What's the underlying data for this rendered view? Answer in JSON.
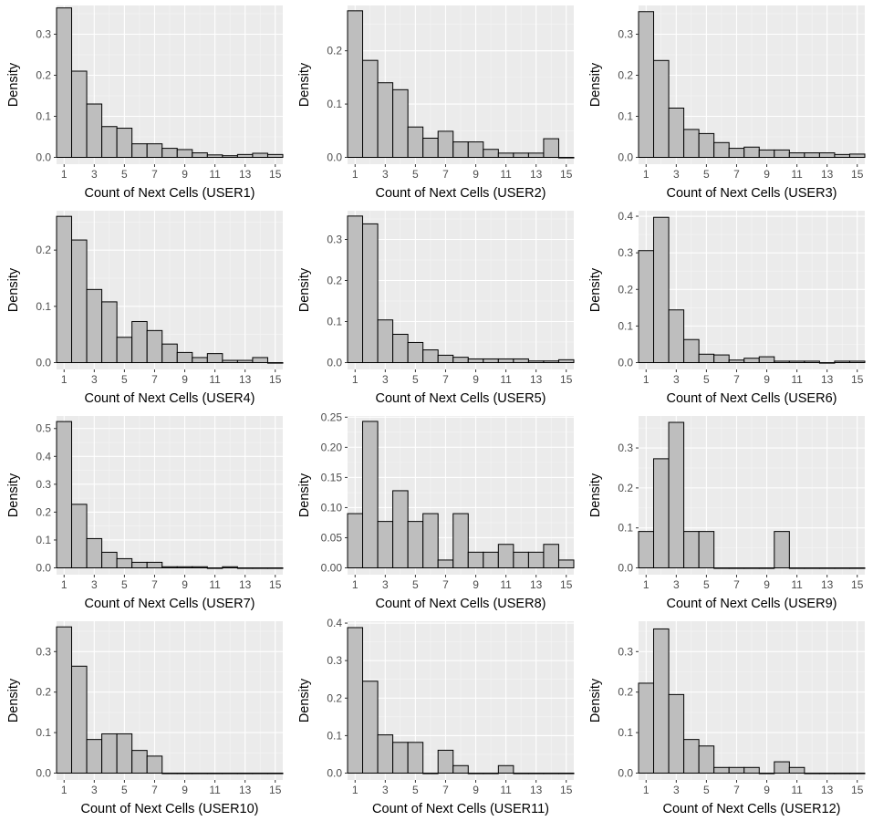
{
  "colors": {
    "panel_background": "#EBEBEB",
    "grid_major": "#FFFFFF",
    "grid_minor": "#F5F5F5",
    "bar_fill": "#BEBEBE",
    "bar_stroke": "#000000",
    "axis_text": "#4D4D4D",
    "title_text": "#000000"
  },
  "chart_data": [
    {
      "type": "bar",
      "xlabel": "Count of Next Cells (USER1)",
      "ylabel": "Density",
      "x": [
        1,
        2,
        3,
        4,
        5,
        6,
        7,
        8,
        9,
        10,
        11,
        12,
        13,
        14,
        15
      ],
      "values": [
        0.364,
        0.21,
        0.13,
        0.075,
        0.071,
        0.033,
        0.033,
        0.022,
        0.019,
        0.011,
        0.006,
        0.004,
        0.007,
        0.01,
        0.007
      ],
      "xlim": [
        0.5,
        15.5
      ],
      "ylim": [
        0,
        0.37
      ],
      "xticks": [
        1,
        3,
        5,
        7,
        9,
        11,
        13,
        15
      ],
      "yticks": [
        0,
        0.1,
        0.2,
        0.3
      ],
      "ytick_labels": [
        "0.0",
        "0.1",
        "0.2",
        "0.3"
      ]
    },
    {
      "type": "bar",
      "xlabel": "Count of Next Cells (USER2)",
      "ylabel": "Density",
      "x": [
        1,
        2,
        3,
        4,
        5,
        6,
        7,
        8,
        9,
        10,
        11,
        12,
        13,
        14,
        15
      ],
      "values": [
        0.275,
        0.182,
        0.14,
        0.127,
        0.057,
        0.036,
        0.049,
        0.029,
        0.029,
        0.015,
        0.008,
        0.008,
        0.008,
        0.035,
        0.0
      ],
      "xlim": [
        0.5,
        15.5
      ],
      "ylim": [
        0,
        0.285
      ],
      "xticks": [
        1,
        3,
        5,
        7,
        9,
        11,
        13,
        15
      ],
      "yticks": [
        0,
        0.1,
        0.2
      ],
      "ytick_labels": [
        "0.0",
        "0.1",
        "0.2"
      ]
    },
    {
      "type": "bar",
      "xlabel": "Count of Next Cells (USER3)",
      "ylabel": "Density",
      "x": [
        1,
        2,
        3,
        4,
        5,
        6,
        7,
        8,
        9,
        10,
        11,
        12,
        13,
        14,
        15
      ],
      "values": [
        0.355,
        0.236,
        0.12,
        0.068,
        0.058,
        0.036,
        0.022,
        0.025,
        0.018,
        0.018,
        0.011,
        0.011,
        0.011,
        0.007,
        0.008
      ],
      "xlim": [
        0.5,
        15.5
      ],
      "ylim": [
        0,
        0.37
      ],
      "xticks": [
        1,
        3,
        5,
        7,
        9,
        11,
        13,
        15
      ],
      "yticks": [
        0,
        0.1,
        0.2,
        0.3
      ],
      "ytick_labels": [
        "0.0",
        "0.1",
        "0.2",
        "0.3"
      ]
    },
    {
      "type": "bar",
      "xlabel": "Count of Next Cells (USER4)",
      "ylabel": "Density",
      "x": [
        1,
        2,
        3,
        4,
        5,
        6,
        7,
        8,
        9,
        10,
        11,
        12,
        13,
        14,
        15
      ],
      "values": [
        0.26,
        0.218,
        0.13,
        0.108,
        0.045,
        0.073,
        0.057,
        0.033,
        0.018,
        0.009,
        0.016,
        0.004,
        0.004,
        0.009,
        0.0
      ],
      "xlim": [
        0.5,
        15.5
      ],
      "ylim": [
        0,
        0.27
      ],
      "xticks": [
        1,
        3,
        5,
        7,
        9,
        11,
        13,
        15
      ],
      "yticks": [
        0,
        0.1,
        0.2
      ],
      "ytick_labels": [
        "0.0",
        "0.1",
        "0.2"
      ]
    },
    {
      "type": "bar",
      "xlabel": "Count of Next Cells (USER5)",
      "ylabel": "Density",
      "x": [
        1,
        2,
        3,
        4,
        5,
        6,
        7,
        8,
        9,
        10,
        11,
        12,
        13,
        14,
        15
      ],
      "values": [
        0.357,
        0.338,
        0.104,
        0.069,
        0.049,
        0.031,
        0.018,
        0.013,
        0.009,
        0.009,
        0.009,
        0.009,
        0.004,
        0.004,
        0.007
      ],
      "xlim": [
        0.5,
        15.5
      ],
      "ylim": [
        0,
        0.37
      ],
      "xticks": [
        1,
        3,
        5,
        7,
        9,
        11,
        13,
        15
      ],
      "yticks": [
        0,
        0.1,
        0.2,
        0.3
      ],
      "ytick_labels": [
        "0.0",
        "0.1",
        "0.2",
        "0.3"
      ]
    },
    {
      "type": "bar",
      "xlabel": "Count of Next Cells (USER6)",
      "ylabel": "Density",
      "x": [
        1,
        2,
        3,
        4,
        5,
        6,
        7,
        8,
        9,
        10,
        11,
        12,
        13,
        14,
        15
      ],
      "values": [
        0.306,
        0.397,
        0.144,
        0.063,
        0.023,
        0.021,
        0.007,
        0.012,
        0.016,
        0.004,
        0.004,
        0.004,
        0.0,
        0.004,
        0.004
      ],
      "xlim": [
        0.5,
        15.5
      ],
      "ylim": [
        0,
        0.415
      ],
      "xticks": [
        1,
        3,
        5,
        7,
        9,
        11,
        13,
        15
      ],
      "yticks": [
        0,
        0.1,
        0.2,
        0.3,
        0.4
      ],
      "ytick_labels": [
        "0.0",
        "0.1",
        "0.2",
        "0.3",
        "0.4"
      ]
    },
    {
      "type": "bar",
      "xlabel": "Count of Next Cells (USER7)",
      "ylabel": "Density",
      "x": [
        1,
        2,
        3,
        4,
        5,
        6,
        7,
        8,
        9,
        10,
        11,
        12,
        13,
        14,
        15
      ],
      "values": [
        0.525,
        0.228,
        0.105,
        0.056,
        0.033,
        0.02,
        0.02,
        0.004,
        0.004,
        0.004,
        0.0,
        0.004,
        0.0,
        0.0,
        0.0
      ],
      "xlim": [
        0.5,
        15.5
      ],
      "ylim": [
        0,
        0.545
      ],
      "xticks": [
        1,
        3,
        5,
        7,
        9,
        11,
        13,
        15
      ],
      "yticks": [
        0,
        0.1,
        0.2,
        0.3,
        0.4,
        0.5
      ],
      "ytick_labels": [
        "0.0",
        "0.1",
        "0.2",
        "0.3",
        "0.4",
        "0.5"
      ]
    },
    {
      "type": "bar",
      "xlabel": "Count of Next Cells (USER8)",
      "ylabel": "Density",
      "x": [
        1,
        2,
        3,
        4,
        5,
        6,
        7,
        8,
        9,
        10,
        11,
        12,
        13,
        14,
        15
      ],
      "values": [
        0.09,
        0.243,
        0.077,
        0.128,
        0.077,
        0.09,
        0.013,
        0.09,
        0.026,
        0.026,
        0.039,
        0.026,
        0.026,
        0.039,
        0.013
      ],
      "xlim": [
        0.5,
        15.5
      ],
      "ylim": [
        0,
        0.252
      ],
      "xticks": [
        1,
        3,
        5,
        7,
        9,
        11,
        13,
        15
      ],
      "yticks": [
        0,
        0.05,
        0.1,
        0.15,
        0.2,
        0.25
      ],
      "ytick_labels": [
        "0.00",
        "0.05",
        "0.10",
        "0.15",
        "0.20",
        "0.25"
      ]
    },
    {
      "type": "bar",
      "xlabel": "Count of Next Cells (USER9)",
      "ylabel": "Density",
      "x": [
        1,
        2,
        3,
        4,
        5,
        6,
        7,
        8,
        9,
        10,
        11,
        12,
        13,
        14,
        15
      ],
      "values": [
        0.091,
        0.273,
        0.364,
        0.091,
        0.091,
        0.0,
        0.0,
        0.0,
        0.0,
        0.091,
        0.0,
        0.0,
        0.0,
        0.0,
        0.0
      ],
      "xlim": [
        0.5,
        15.5
      ],
      "ylim": [
        0,
        0.38
      ],
      "xticks": [
        1,
        3,
        5,
        7,
        9,
        11,
        13,
        15
      ],
      "yticks": [
        0,
        0.1,
        0.2,
        0.3
      ],
      "ytick_labels": [
        "0.0",
        "0.1",
        "0.2",
        "0.3"
      ]
    },
    {
      "type": "bar",
      "xlabel": "Count of Next Cells (USER10)",
      "ylabel": "Density",
      "x": [
        1,
        2,
        3,
        4,
        5,
        6,
        7,
        8,
        9,
        10,
        11,
        12,
        13,
        14,
        15
      ],
      "values": [
        0.361,
        0.264,
        0.083,
        0.097,
        0.097,
        0.056,
        0.042,
        0.0,
        0.0,
        0.0,
        0.0,
        0.0,
        0.0,
        0.0,
        0.0
      ],
      "xlim": [
        0.5,
        15.5
      ],
      "ylim": [
        0,
        0.375
      ],
      "xticks": [
        1,
        3,
        5,
        7,
        9,
        11,
        13,
        15
      ],
      "yticks": [
        0,
        0.1,
        0.2,
        0.3
      ],
      "ytick_labels": [
        "0.0",
        "0.1",
        "0.2",
        "0.3"
      ]
    },
    {
      "type": "bar",
      "xlabel": "Count of Next Cells (USER11)",
      "ylabel": "Density",
      "x": [
        1,
        2,
        3,
        4,
        5,
        6,
        7,
        8,
        9,
        10,
        11,
        12,
        13,
        14,
        15
      ],
      "values": [
        0.388,
        0.245,
        0.102,
        0.082,
        0.082,
        0.0,
        0.061,
        0.02,
        0.0,
        0.0,
        0.02,
        0.0,
        0.0,
        0.0,
        0.0
      ],
      "xlim": [
        0.5,
        15.5
      ],
      "ylim": [
        0,
        0.405
      ],
      "xticks": [
        1,
        3,
        5,
        7,
        9,
        11,
        13,
        15
      ],
      "yticks": [
        0,
        0.1,
        0.2,
        0.3,
        0.4
      ],
      "ytick_labels": [
        "0.0",
        "0.1",
        "0.2",
        "0.3",
        "0.4"
      ]
    },
    {
      "type": "bar",
      "xlabel": "Count of Next Cells (USER12)",
      "ylabel": "Density",
      "x": [
        1,
        2,
        3,
        4,
        5,
        6,
        7,
        8,
        9,
        10,
        11,
        12,
        13,
        14,
        15
      ],
      "values": [
        0.222,
        0.356,
        0.194,
        0.083,
        0.067,
        0.014,
        0.014,
        0.014,
        0.0,
        0.028,
        0.014,
        0.0,
        0.0,
        0.0,
        0.0
      ],
      "xlim": [
        0.5,
        15.5
      ],
      "ylim": [
        0,
        0.375
      ],
      "xticks": [
        1,
        3,
        5,
        7,
        9,
        11,
        13,
        15
      ],
      "yticks": [
        0,
        0.1,
        0.2,
        0.3
      ],
      "ytick_labels": [
        "0.0",
        "0.1",
        "0.2",
        "0.3"
      ]
    }
  ]
}
